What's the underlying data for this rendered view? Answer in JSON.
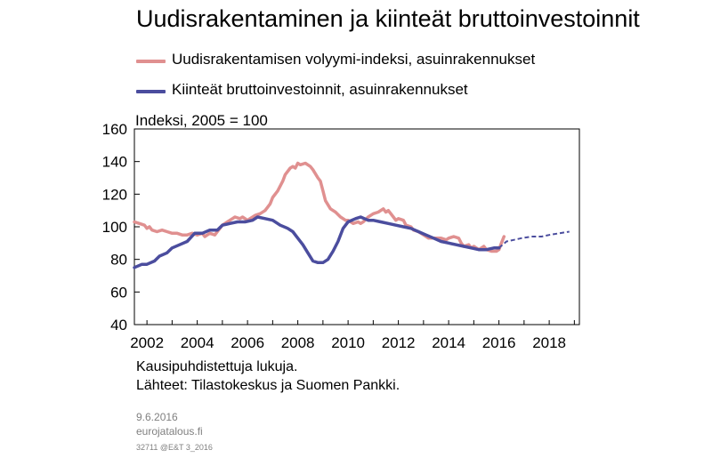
{
  "chart_data": {
    "type": "line",
    "title": "Uudisrakentaminen ja kiinteät bruttoinvestoinnit",
    "ylabel": "Indeksi, 2005 = 100",
    "xlabel": "",
    "ylim": [
      40,
      160
    ],
    "xlim": [
      2001.5,
      2019.2
    ],
    "yticks": [
      40,
      60,
      80,
      100,
      120,
      140,
      160
    ],
    "xticks": [
      2002,
      2004,
      2006,
      2008,
      2010,
      2012,
      2014,
      2016,
      2018
    ],
    "xtick_labels": [
      "2002",
      "2004",
      "2006",
      "2008",
      "2010",
      "2012",
      "2014",
      "2016",
      "2018"
    ],
    "grid": false,
    "legend_placement": "top-left",
    "series": [
      {
        "name": "Uudisrakentamisen volyymi-indeksi, asuinrakennukset",
        "color": "#e09090",
        "style": "solid",
        "points": [
          [
            2001.5,
            103
          ],
          [
            2001.7,
            102
          ],
          [
            2001.9,
            101
          ],
          [
            2002.0,
            99
          ],
          [
            2002.1,
            100
          ],
          [
            2002.2,
            98
          ],
          [
            2002.4,
            97
          ],
          [
            2002.6,
            98
          ],
          [
            2002.8,
            97
          ],
          [
            2003.0,
            96
          ],
          [
            2003.2,
            96
          ],
          [
            2003.4,
            95
          ],
          [
            2003.6,
            95
          ],
          [
            2003.8,
            96
          ],
          [
            2004.0,
            95
          ],
          [
            2004.2,
            96
          ],
          [
            2004.3,
            94
          ],
          [
            2004.5,
            96
          ],
          [
            2004.7,
            95
          ],
          [
            2004.8,
            97
          ],
          [
            2005.0,
            101
          ],
          [
            2005.2,
            103
          ],
          [
            2005.4,
            105
          ],
          [
            2005.5,
            106
          ],
          [
            2005.7,
            105
          ],
          [
            2005.8,
            106
          ],
          [
            2006.0,
            104
          ],
          [
            2006.1,
            105
          ],
          [
            2006.3,
            107
          ],
          [
            2006.5,
            108
          ],
          [
            2006.7,
            110
          ],
          [
            2006.9,
            114
          ],
          [
            2007.0,
            118
          ],
          [
            2007.2,
            122
          ],
          [
            2007.4,
            128
          ],
          [
            2007.5,
            132
          ],
          [
            2007.7,
            136
          ],
          [
            2007.8,
            137
          ],
          [
            2007.9,
            136
          ],
          [
            2008.0,
            139
          ],
          [
            2008.1,
            138
          ],
          [
            2008.3,
            139
          ],
          [
            2008.5,
            137
          ],
          [
            2008.6,
            135
          ],
          [
            2008.8,
            130
          ],
          [
            2008.9,
            128
          ],
          [
            2009.0,
            122
          ],
          [
            2009.1,
            116
          ],
          [
            2009.3,
            111
          ],
          [
            2009.5,
            109
          ],
          [
            2009.7,
            106
          ],
          [
            2009.9,
            104
          ],
          [
            2010.0,
            104
          ],
          [
            2010.2,
            102
          ],
          [
            2010.4,
            103
          ],
          [
            2010.5,
            102
          ],
          [
            2010.6,
            103
          ],
          [
            2010.8,
            106
          ],
          [
            2011.0,
            108
          ],
          [
            2011.2,
            109
          ],
          [
            2011.4,
            111
          ],
          [
            2011.5,
            109
          ],
          [
            2011.6,
            110
          ],
          [
            2011.8,
            106
          ],
          [
            2011.9,
            104
          ],
          [
            2012.0,
            105
          ],
          [
            2012.2,
            104
          ],
          [
            2012.3,
            101
          ],
          [
            2012.5,
            100
          ],
          [
            2012.6,
            98
          ],
          [
            2012.8,
            97
          ],
          [
            2013.0,
            95
          ],
          [
            2013.2,
            93
          ],
          [
            2013.4,
            93
          ],
          [
            2013.5,
            93
          ],
          [
            2013.7,
            93
          ],
          [
            2013.9,
            92
          ],
          [
            2014.0,
            93
          ],
          [
            2014.2,
            94
          ],
          [
            2014.4,
            93
          ],
          [
            2014.5,
            90
          ],
          [
            2014.6,
            88
          ],
          [
            2014.8,
            89
          ],
          [
            2014.9,
            87
          ],
          [
            2015.0,
            88
          ],
          [
            2015.2,
            86
          ],
          [
            2015.4,
            88
          ],
          [
            2015.5,
            86
          ],
          [
            2015.7,
            85
          ],
          [
            2015.9,
            85
          ],
          [
            2016.0,
            86
          ],
          [
            2016.1,
            90
          ],
          [
            2016.2,
            94
          ]
        ]
      },
      {
        "name": "Kiinteät bruttoinvestoinnit, asuinrakennukset",
        "color": "#4b4d9e",
        "style": "solid",
        "points": [
          [
            2001.5,
            75
          ],
          [
            2001.8,
            77
          ],
          [
            2002.0,
            77
          ],
          [
            2002.3,
            79
          ],
          [
            2002.5,
            82
          ],
          [
            2002.8,
            84
          ],
          [
            2003.0,
            87
          ],
          [
            2003.3,
            89
          ],
          [
            2003.6,
            91
          ],
          [
            2003.9,
            96
          ],
          [
            2004.2,
            96
          ],
          [
            2004.5,
            98
          ],
          [
            2004.8,
            98
          ],
          [
            2005.0,
            101
          ],
          [
            2005.3,
            102
          ],
          [
            2005.6,
            103
          ],
          [
            2005.9,
            103
          ],
          [
            2006.2,
            104
          ],
          [
            2006.4,
            106
          ],
          [
            2006.7,
            105
          ],
          [
            2007.0,
            104
          ],
          [
            2007.3,
            101
          ],
          [
            2007.6,
            99
          ],
          [
            2007.8,
            97
          ],
          [
            2008.0,
            93
          ],
          [
            2008.2,
            89
          ],
          [
            2008.4,
            84
          ],
          [
            2008.6,
            79
          ],
          [
            2008.8,
            78
          ],
          [
            2009.0,
            78
          ],
          [
            2009.2,
            80
          ],
          [
            2009.4,
            85
          ],
          [
            2009.6,
            91
          ],
          [
            2009.8,
            99
          ],
          [
            2010.0,
            103
          ],
          [
            2010.3,
            105
          ],
          [
            2010.5,
            106
          ],
          [
            2010.8,
            104
          ],
          [
            2011.0,
            104
          ],
          [
            2011.3,
            103
          ],
          [
            2011.6,
            102
          ],
          [
            2011.9,
            101
          ],
          [
            2012.2,
            100
          ],
          [
            2012.5,
            99
          ],
          [
            2012.8,
            97
          ],
          [
            2013.1,
            95
          ],
          [
            2013.4,
            93
          ],
          [
            2013.7,
            91
          ],
          [
            2014.0,
            90
          ],
          [
            2014.3,
            89
          ],
          [
            2014.6,
            88
          ],
          [
            2014.9,
            87
          ],
          [
            2015.2,
            86
          ],
          [
            2015.5,
            86
          ],
          [
            2015.8,
            87
          ],
          [
            2016.0,
            87
          ]
        ]
      },
      {
        "name": "",
        "color": "#4b4d9e",
        "style": "dashed",
        "points": [
          [
            2016.0,
            87
          ],
          [
            2016.3,
            91
          ],
          [
            2016.6,
            92
          ],
          [
            2016.9,
            93
          ],
          [
            2017.3,
            94
          ],
          [
            2017.7,
            94
          ],
          [
            2018.0,
            95
          ],
          [
            2018.4,
            96
          ],
          [
            2018.8,
            97
          ]
        ]
      }
    ]
  },
  "notes": {
    "line1": "Kausipuhdistettuja lukuja.",
    "line2": "Lähteet: Tilastokeskus ja Suomen Pankki."
  },
  "meta": {
    "date": "9.6.2016",
    "site": "eurojatalous.fi",
    "code": "32711 @E&T 3_2016"
  }
}
